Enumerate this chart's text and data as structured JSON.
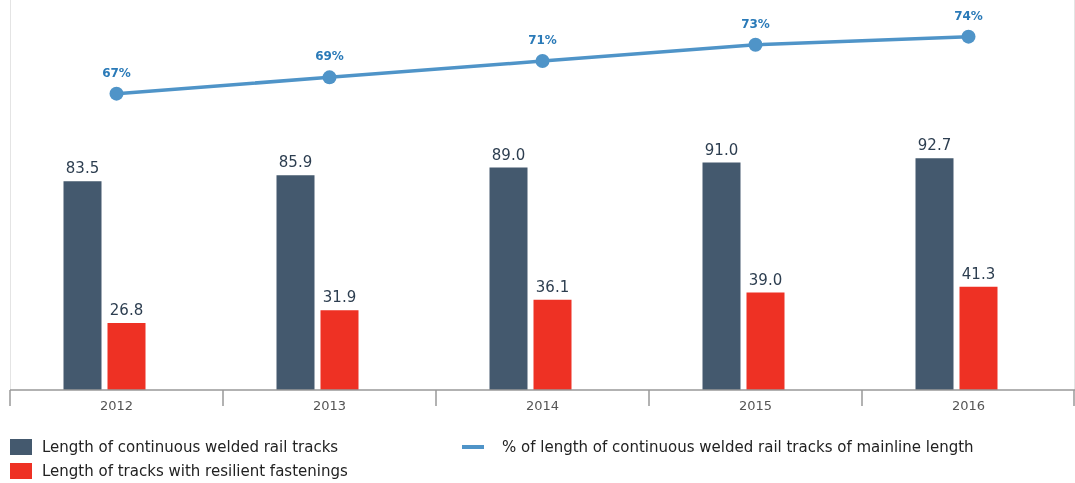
{
  "chart_data": {
    "type": "bar",
    "categories": [
      "2012",
      "2013",
      "2014",
      "2015",
      "2016"
    ],
    "series": [
      {
        "name": "Length of continuous welded rail tracks",
        "color": "#44596e",
        "values": [
          83.5,
          85.9,
          89.0,
          91.0,
          92.7
        ],
        "value_labels": [
          "83.5",
          "85.9",
          "89.0",
          "91.0",
          "92.7"
        ]
      },
      {
        "name": "Length of tracks with resilient fastenings",
        "color": "#ee3124",
        "values": [
          26.8,
          31.9,
          36.1,
          39.0,
          41.3
        ],
        "value_labels": [
          "26.8",
          "31.9",
          "36.1",
          "39.0",
          "41.3"
        ]
      },
      {
        "name": "% of length of continuous welded rail tracks of mainline length",
        "type": "line",
        "axis": "y2",
        "color": "#4f94c8",
        "marker": "circle",
        "values": [
          67,
          69,
          71,
          73,
          74
        ],
        "value_labels": [
          "67%",
          "69%",
          "71%",
          "73%",
          "74%"
        ]
      }
    ],
    "ylim": [
      0,
      156
    ],
    "y2lim": [
      30.6,
      78.5
    ],
    "tick_labels": "x",
    "legend": "bottom"
  }
}
